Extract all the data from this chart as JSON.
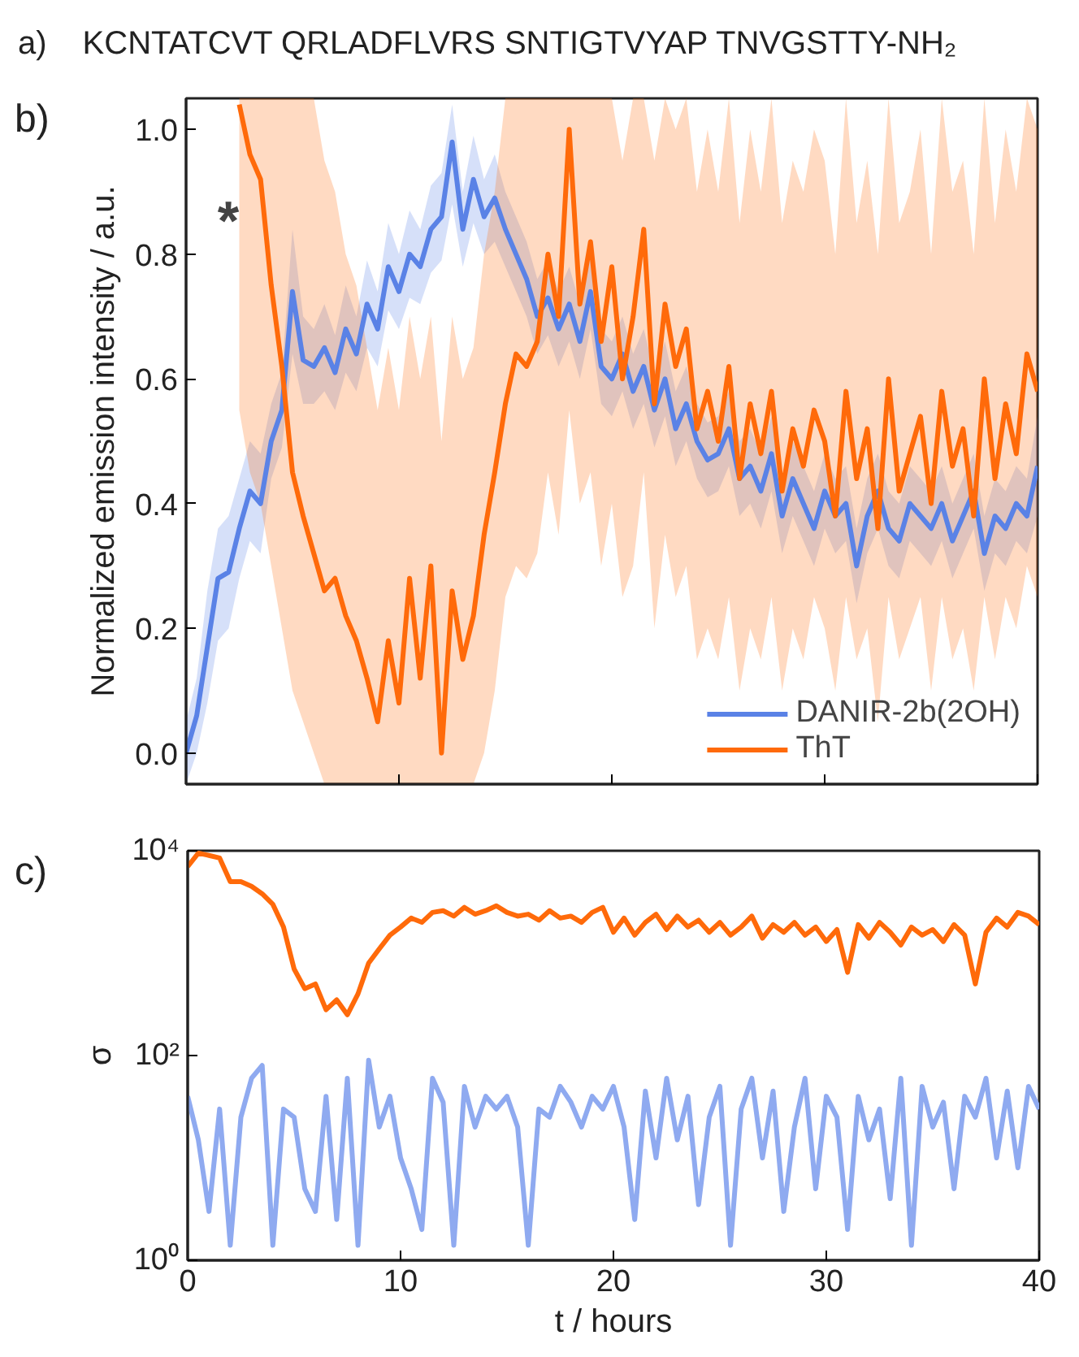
{
  "chart_data": [
    {
      "type": "line",
      "annotations": [
        "a)",
        "KCNTATCVT QRLADFLVRS SNTIGTVYAP TNVGSTTY-NH₂",
        "b)",
        "*"
      ],
      "ylabel": "Normalized emission intensity / a.u.",
      "xlim": [
        0,
        40
      ],
      "xticks": [
        0,
        10,
        20,
        30,
        40
      ],
      "ylim": [
        -0.05,
        1.05
      ],
      "yticks": [
        {
          "value": 0,
          "label": "0.0"
        },
        {
          "value": 0.2,
          "label": "0.2"
        },
        {
          "value": 0.4,
          "label": "0.4"
        },
        {
          "value": 0.6,
          "label": "0.6"
        },
        {
          "value": 0.8,
          "label": "0.8"
        },
        {
          "value": 1,
          "label": "1.0"
        }
      ],
      "tick_labels": "y",
      "legend": "bottom right",
      "line_style": "solid",
      "marker": "none",
      "series": [
        {
          "name": "DANIR-2b(2OH)",
          "color": "#5a82e6",
          "x": [
            0,
            0.5,
            1,
            1.5,
            2,
            2.5,
            3,
            3.5,
            4,
            4.5,
            5,
            5.5,
            6,
            6.5,
            7,
            7.5,
            8,
            8.5,
            9,
            9.5,
            10,
            10.5,
            11,
            11.5,
            12,
            12.5,
            13,
            13.5,
            14,
            14.5,
            15,
            15.5,
            16,
            16.5,
            17,
            17.5,
            18,
            18.5,
            19,
            19.5,
            20,
            20.5,
            21,
            21.5,
            22,
            22.5,
            23,
            23.5,
            24,
            24.5,
            25,
            25.5,
            26,
            26.5,
            27,
            27.5,
            28,
            28.5,
            29,
            29.5,
            30,
            30.5,
            31,
            31.5,
            32,
            32.5,
            33,
            33.5,
            34,
            34.5,
            35,
            35.5,
            36,
            36.5,
            37,
            37.5,
            38,
            38.5,
            39,
            39.5,
            40
          ],
          "values": [
            0.0,
            0.06,
            0.17,
            0.28,
            0.29,
            0.36,
            0.42,
            0.4,
            0.5,
            0.55,
            0.74,
            0.63,
            0.62,
            0.65,
            0.61,
            0.68,
            0.64,
            0.72,
            0.68,
            0.78,
            0.74,
            0.8,
            0.78,
            0.84,
            0.86,
            0.98,
            0.84,
            0.92,
            0.86,
            0.89,
            0.84,
            0.8,
            0.76,
            0.7,
            0.73,
            0.68,
            0.72,
            0.66,
            0.74,
            0.62,
            0.6,
            0.64,
            0.58,
            0.62,
            0.55,
            0.6,
            0.52,
            0.56,
            0.5,
            0.47,
            0.48,
            0.52,
            0.44,
            0.46,
            0.42,
            0.48,
            0.38,
            0.44,
            0.4,
            0.36,
            0.42,
            0.38,
            0.4,
            0.3,
            0.38,
            0.42,
            0.36,
            0.34,
            0.4,
            0.38,
            0.36,
            0.4,
            0.34,
            0.38,
            0.42,
            0.32,
            0.38,
            0.36,
            0.4,
            0.38,
            0.46
          ],
          "lower": [
            -0.05,
            0.0,
            0.08,
            0.18,
            0.2,
            0.28,
            0.34,
            0.32,
            0.44,
            0.49,
            0.64,
            0.56,
            0.56,
            0.58,
            0.55,
            0.61,
            0.58,
            0.65,
            0.62,
            0.71,
            0.68,
            0.73,
            0.72,
            0.77,
            0.79,
            0.88,
            0.78,
            0.85,
            0.8,
            0.82,
            0.78,
            0.74,
            0.7,
            0.64,
            0.67,
            0.62,
            0.66,
            0.6,
            0.68,
            0.56,
            0.54,
            0.58,
            0.52,
            0.56,
            0.49,
            0.54,
            0.46,
            0.5,
            0.44,
            0.41,
            0.42,
            0.46,
            0.38,
            0.4,
            0.36,
            0.42,
            0.32,
            0.38,
            0.34,
            0.3,
            0.36,
            0.32,
            0.34,
            0.24,
            0.32,
            0.36,
            0.3,
            0.28,
            0.34,
            0.32,
            0.3,
            0.34,
            0.28,
            0.32,
            0.36,
            0.26,
            0.32,
            0.3,
            0.34,
            0.32,
            0.38
          ],
          "upper": [
            0.05,
            0.12,
            0.26,
            0.36,
            0.38,
            0.44,
            0.5,
            0.48,
            0.56,
            0.61,
            0.84,
            0.7,
            0.68,
            0.72,
            0.67,
            0.75,
            0.7,
            0.79,
            0.74,
            0.85,
            0.8,
            0.87,
            0.84,
            0.91,
            0.93,
            1.04,
            0.9,
            0.99,
            0.92,
            0.96,
            0.9,
            0.86,
            0.82,
            0.76,
            0.79,
            0.74,
            0.78,
            0.72,
            0.8,
            0.68,
            0.66,
            0.7,
            0.64,
            0.68,
            0.61,
            0.66,
            0.58,
            0.62,
            0.56,
            0.53,
            0.54,
            0.58,
            0.5,
            0.52,
            0.48,
            0.54,
            0.44,
            0.5,
            0.46,
            0.42,
            0.48,
            0.44,
            0.46,
            0.36,
            0.44,
            0.48,
            0.42,
            0.4,
            0.46,
            0.44,
            0.42,
            0.46,
            0.4,
            0.44,
            0.48,
            0.38,
            0.44,
            0.42,
            0.46,
            0.44,
            0.54
          ]
        },
        {
          "name": "ThT",
          "color": "#ff6a0a",
          "x": [
            2.5,
            3,
            3.5,
            4,
            4.5,
            5,
            5.5,
            6,
            6.5,
            7,
            7.5,
            8,
            8.5,
            9,
            9.5,
            10,
            10.5,
            11,
            11.5,
            12,
            12.5,
            13,
            13.5,
            14,
            14.5,
            15,
            15.5,
            16,
            16.5,
            17,
            17.5,
            18,
            18.5,
            19,
            19.5,
            20,
            20.5,
            21,
            21.5,
            22,
            22.5,
            23,
            23.5,
            24,
            24.5,
            25,
            25.5,
            26,
            26.5,
            27,
            27.5,
            28,
            28.5,
            29,
            29.5,
            30,
            30.5,
            31,
            31.5,
            32,
            32.5,
            33,
            33.5,
            34,
            34.5,
            35,
            35.5,
            36,
            36.5,
            37,
            37.5,
            38,
            38.5,
            39,
            39.5,
            40
          ],
          "values": [
            1.04,
            0.96,
            0.92,
            0.75,
            0.62,
            0.45,
            0.38,
            0.32,
            0.26,
            0.28,
            0.22,
            0.18,
            0.12,
            0.05,
            0.18,
            0.08,
            0.28,
            0.12,
            0.3,
            0.0,
            0.26,
            0.15,
            0.22,
            0.35,
            0.45,
            0.56,
            0.64,
            0.62,
            0.66,
            0.8,
            0.7,
            1.0,
            0.72,
            0.82,
            0.66,
            0.78,
            0.6,
            0.7,
            0.84,
            0.56,
            0.72,
            0.62,
            0.68,
            0.52,
            0.58,
            0.5,
            0.62,
            0.44,
            0.56,
            0.48,
            0.58,
            0.42,
            0.52,
            0.46,
            0.55,
            0.5,
            0.38,
            0.58,
            0.44,
            0.52,
            0.36,
            0.6,
            0.42,
            0.48,
            0.54,
            0.4,
            0.58,
            0.46,
            0.52,
            0.38,
            0.6,
            0.44,
            0.56,
            0.48,
            0.64,
            0.58
          ],
          "lower": [
            0.55,
            0.45,
            0.4,
            0.3,
            0.2,
            0.1,
            0.05,
            0.0,
            -0.05,
            -0.05,
            -0.05,
            -0.05,
            -0.05,
            -0.05,
            -0.05,
            -0.05,
            -0.05,
            -0.05,
            -0.05,
            -0.05,
            -0.05,
            -0.05,
            -0.05,
            0.0,
            0.1,
            0.25,
            0.3,
            0.28,
            0.32,
            0.45,
            0.35,
            0.55,
            0.4,
            0.45,
            0.3,
            0.4,
            0.25,
            0.3,
            0.45,
            0.2,
            0.35,
            0.25,
            0.3,
            0.15,
            0.2,
            0.15,
            0.25,
            0.1,
            0.2,
            0.15,
            0.25,
            0.1,
            0.2,
            0.15,
            0.25,
            0.2,
            0.1,
            0.25,
            0.15,
            0.2,
            0.05,
            0.25,
            0.15,
            0.2,
            0.25,
            0.1,
            0.25,
            0.15,
            0.2,
            0.1,
            0.25,
            0.15,
            0.25,
            0.2,
            0.3,
            0.25
          ],
          "upper": [
            1.05,
            1.05,
            1.05,
            1.05,
            1.05,
            1.05,
            1.05,
            1.05,
            0.95,
            0.9,
            0.8,
            0.75,
            0.65,
            0.55,
            0.65,
            0.55,
            0.7,
            0.6,
            0.7,
            0.5,
            0.7,
            0.6,
            0.65,
            0.8,
            0.9,
            1.05,
            1.05,
            1.05,
            1.05,
            1.05,
            1.05,
            1.05,
            1.05,
            1.05,
            1.05,
            1.05,
            0.95,
            1.05,
            1.05,
            0.95,
            1.05,
            1.0,
            1.05,
            0.9,
            1.0,
            0.9,
            1.05,
            0.85,
            1.0,
            0.9,
            1.05,
            0.85,
            0.95,
            0.9,
            1.0,
            0.95,
            0.8,
            1.05,
            0.85,
            0.95,
            0.8,
            1.05,
            0.85,
            0.9,
            1.0,
            0.8,
            1.05,
            0.9,
            0.95,
            0.8,
            1.05,
            0.85,
            1.0,
            0.9,
            1.05,
            1.0
          ]
        }
      ]
    },
    {
      "type": "line",
      "annotations": [
        "c)"
      ],
      "xlabel": "t / hours",
      "ylabel": "σ",
      "log": "y",
      "xlim": [
        0,
        40
      ],
      "xticks": [
        0,
        10,
        20,
        30,
        40
      ],
      "ylim": [
        1,
        10000
      ],
      "yticks": [
        {
          "value": 1,
          "label": "10⁰"
        },
        {
          "value": 100,
          "label": "10²"
        },
        {
          "value": 10000,
          "label": "10⁴"
        }
      ],
      "line_style": "solid",
      "marker": "none",
      "x": [
        0,
        0.5,
        1,
        1.5,
        2,
        2.5,
        3,
        3.5,
        4,
        4.5,
        5,
        5.5,
        6,
        6.5,
        7,
        7.5,
        8,
        8.5,
        9,
        9.5,
        10,
        10.5,
        11,
        11.5,
        12,
        12.5,
        13,
        13.5,
        14,
        14.5,
        15,
        15.5,
        16,
        16.5,
        17,
        17.5,
        18,
        18.5,
        19,
        19.5,
        20,
        20.5,
        21,
        21.5,
        22,
        22.5,
        23,
        23.5,
        24,
        24.5,
        25,
        25.5,
        26,
        26.5,
        27,
        27.5,
        28,
        28.5,
        29,
        29.5,
        30,
        30.5,
        31,
        31.5,
        32,
        32.5,
        33,
        33.5,
        34,
        34.5,
        35,
        35.5,
        36,
        36.5,
        37,
        37.5,
        38,
        38.5,
        39,
        39.5,
        40
      ],
      "series": [
        {
          "color": "#ff6a0a",
          "values": [
            7000,
            9500,
            9000,
            8500,
            5000,
            5000,
            4500,
            3800,
            3000,
            1800,
            700,
            450,
            500,
            280,
            350,
            250,
            400,
            800,
            1100,
            1500,
            1800,
            2200,
            2000,
            2500,
            2600,
            2300,
            2800,
            2400,
            2600,
            2900,
            2500,
            2300,
            2400,
            2100,
            2600,
            2200,
            2300,
            2000,
            2500,
            2800,
            1600,
            2200,
            1500,
            2000,
            2400,
            1700,
            2300,
            1800,
            2100,
            1600,
            2000,
            1500,
            1800,
            2300,
            1400,
            1900,
            1600,
            2000,
            1500,
            1800,
            1300,
            1700,
            650,
            1900,
            1400,
            2000,
            1600,
            1200,
            1800,
            1500,
            1700,
            1300,
            1900,
            1500,
            500,
            1600,
            2200,
            1800,
            2500,
            2300,
            1900
          ]
        },
        {
          "color": "#8faaf0",
          "values": [
            40,
            15,
            3,
            30,
            1.4,
            25,
            60,
            80,
            1.4,
            30,
            25,
            5,
            3,
            40,
            2.5,
            60,
            1.4,
            90,
            20,
            40,
            10,
            5,
            2,
            60,
            35,
            1.4,
            50,
            20,
            40,
            30,
            40,
            20,
            1.4,
            30,
            25,
            50,
            35,
            20,
            40,
            30,
            50,
            20,
            2.5,
            45,
            10,
            60,
            15,
            40,
            3.5,
            25,
            50,
            1.4,
            30,
            60,
            10,
            45,
            3,
            20,
            60,
            5,
            40,
            25,
            2,
            40,
            15,
            30,
            4,
            60,
            1.4,
            50,
            20,
            35,
            5,
            40,
            25,
            60,
            10,
            45,
            8,
            50,
            30
          ]
        }
      ]
    }
  ]
}
